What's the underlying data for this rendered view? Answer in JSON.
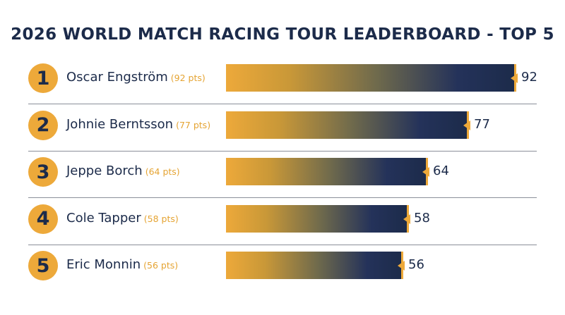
{
  "chart_data": {
    "type": "bar",
    "orientation": "horizontal",
    "title": "2026 WORLD MATCH RACING TOUR LEADERBOARD - TOP 5",
    "xlim": [
      0,
      92
    ],
    "grid": false,
    "legend": "none",
    "entries": [
      {
        "rank": "1",
        "name": "Oscar Engström",
        "pts_label": "(92 pts)",
        "value": 92,
        "value_label": "92"
      },
      {
        "rank": "2",
        "name": "Johnie Berntsson",
        "pts_label": "(77 pts)",
        "value": 77,
        "value_label": "77"
      },
      {
        "rank": "3",
        "name": "Jeppe Borch",
        "pts_label": "(64 pts)",
        "value": 64,
        "value_label": "64"
      },
      {
        "rank": "4",
        "name": "Cole Tapper",
        "pts_label": "(58 pts)",
        "value": 58,
        "value_label": "58"
      },
      {
        "rank": "5",
        "name": "Eric Monnin",
        "pts_label": "(56 pts)",
        "value": 56,
        "value_label": "56"
      }
    ]
  },
  "colors": {
    "accent": "#eda93a",
    "navy": "#1c2b4a",
    "divider": "#8a8f99"
  }
}
